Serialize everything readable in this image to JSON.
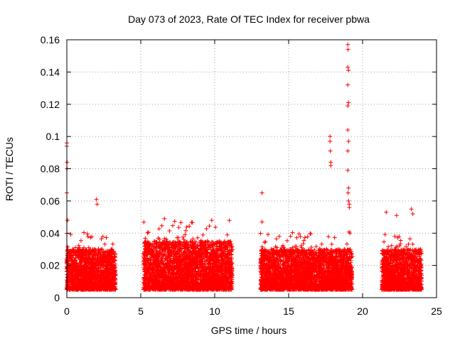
{
  "chart_data": {
    "type": "scatter",
    "title": "Day 073 of 2023, Rate Of TEC Index for receiver pbwa",
    "xlabel": "GPS time / hours",
    "ylabel": "ROTI / TECUs",
    "xlim": [
      0,
      25
    ],
    "ylim": [
      0,
      0.16
    ],
    "x_ticks": [
      "0",
      "5",
      "10",
      "15",
      "20",
      "25"
    ],
    "y_ticks": [
      "0",
      "0.02",
      "0.04",
      "0.06",
      "0.08",
      "0.1",
      "0.12",
      "0.14",
      "0.16"
    ],
    "grid": true,
    "marker": "+",
    "marker_color": "#ff0000",
    "data_segments": [
      {
        "x_start": 0.0,
        "x_end": 3.3,
        "typical_range": [
          0.005,
          0.03
        ]
      },
      {
        "x_start": 5.2,
        "x_end": 11.2,
        "typical_range": [
          0.005,
          0.035
        ]
      },
      {
        "x_start": 13.1,
        "x_end": 19.3,
        "typical_range": [
          0.005,
          0.03
        ]
      },
      {
        "x_start": 21.3,
        "x_end": 24.0,
        "typical_range": [
          0.005,
          0.03
        ]
      }
    ],
    "notable_points": [
      {
        "x": 0.0,
        "y": 0.096
      },
      {
        "x": 0.0,
        "y": 0.094
      },
      {
        "x": 0.02,
        "y": 0.084
      },
      {
        "x": 0.02,
        "y": 0.08
      },
      {
        "x": 0.0,
        "y": 0.065
      },
      {
        "x": 0.05,
        "y": 0.048
      },
      {
        "x": 2.0,
        "y": 0.061
      },
      {
        "x": 2.05,
        "y": 0.058
      },
      {
        "x": 6.6,
        "y": 0.049
      },
      {
        "x": 9.8,
        "y": 0.048
      },
      {
        "x": 13.2,
        "y": 0.065
      },
      {
        "x": 13.2,
        "y": 0.047
      },
      {
        "x": 17.8,
        "y": 0.1
      },
      {
        "x": 17.8,
        "y": 0.097
      },
      {
        "x": 17.82,
        "y": 0.091
      },
      {
        "x": 17.85,
        "y": 0.084
      },
      {
        "x": 17.85,
        "y": 0.082
      },
      {
        "x": 19.0,
        "y": 0.157
      },
      {
        "x": 19.02,
        "y": 0.154
      },
      {
        "x": 19.0,
        "y": 0.143
      },
      {
        "x": 19.05,
        "y": 0.141
      },
      {
        "x": 19.0,
        "y": 0.132
      },
      {
        "x": 19.05,
        "y": 0.121
      },
      {
        "x": 19.0,
        "y": 0.119
      },
      {
        "x": 19.0,
        "y": 0.104
      },
      {
        "x": 19.05,
        "y": 0.097
      },
      {
        "x": 19.0,
        "y": 0.091
      },
      {
        "x": 19.0,
        "y": 0.079
      },
      {
        "x": 19.05,
        "y": 0.068
      },
      {
        "x": 19.02,
        "y": 0.065
      },
      {
        "x": 19.05,
        "y": 0.06
      },
      {
        "x": 19.1,
        "y": 0.058
      },
      {
        "x": 19.1,
        "y": 0.056
      },
      {
        "x": 19.15,
        "y": 0.04
      },
      {
        "x": 21.6,
        "y": 0.053
      },
      {
        "x": 23.3,
        "y": 0.055
      },
      {
        "x": 23.4,
        "y": 0.052
      },
      {
        "x": 22.3,
        "y": 0.051
      }
    ]
  }
}
